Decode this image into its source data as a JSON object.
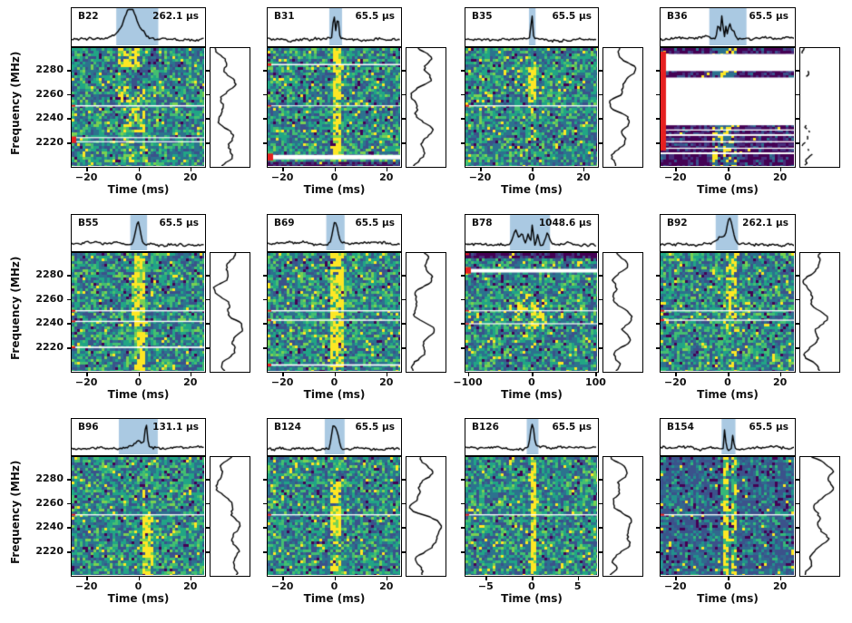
{
  "chart_data": {
    "type": "heatmap",
    "description": "3x4 grid of radio burst dynamic spectra; each panel has a pulse profile (top), a time-frequency waterfall (viridis colormap, white masked channels, red flag markers) and a frequency spectrum (right).",
    "xlabel": "Time (ms)",
    "ylabel": "Frequency (MHz)",
    "freq_ticks_mhz": [
      2280,
      2260,
      2240,
      2220
    ],
    "freq_range_mhz": [
      2199,
      2299
    ],
    "colormap": "viridis",
    "colors": {
      "shade": "#aac9e2",
      "masked_line": "#ffffff",
      "flag_marker": "#e62020",
      "line": "#000000",
      "border": "#000000"
    },
    "burst_fields": [
      "t_ms",
      "width_ms",
      "f_lo_mhz",
      "f_hi_mhz",
      "strength"
    ],
    "peak_fields": [
      "t_ms",
      "amplitude",
      "fwhm_ms"
    ],
    "panels": [
      {
        "id": "B22",
        "resolution": "262.1 µs",
        "x_ticks": [
          -20,
          0,
          20
        ],
        "xlim_ms": [
          -26,
          26
        ],
        "masked_lines_mhz": [
          {
            "f": 2250,
            "th": 1.5
          },
          {
            "f": 2223,
            "th": 1.2
          },
          {
            "f": 2219.5,
            "th": 1.2
          }
        ],
        "red_marks": [
          {
            "f": 2250,
            "h": 2
          },
          {
            "f_range": [
              2218.5,
              2224
            ],
            "w": 5
          }
        ],
        "bursts": [
          [
            -4,
            9,
            2283,
            2299,
            0.7
          ],
          [
            -3,
            10,
            2253,
            2267,
            0.4
          ],
          [
            -2,
            9,
            2228,
            2250,
            0.3
          ],
          [
            -1,
            8,
            2204,
            2222,
            0.25
          ]
        ],
        "profile": {
          "peaks": [
            [
              -5,
              0.5,
              6
            ],
            [
              -3,
              0.8,
              3.5
            ],
            [
              0,
              0.4,
              5
            ]
          ],
          "shade_ms": [
            -8.5,
            8
          ]
        },
        "spectrum": {
          "style": "wiggle"
        }
      },
      {
        "id": "B31",
        "resolution": "65.5 µs",
        "x_ticks": [
          -20,
          0,
          20
        ],
        "xlim_ms": [
          -26,
          26
        ],
        "masked_lines_mhz": [
          {
            "f": 2285,
            "th": 1.5
          },
          {
            "f": 2250,
            "th": 1.0
          },
          {
            "f": 2206.5,
            "th": 5
          }
        ],
        "red_marks": [
          {
            "f": 2285,
            "h": 3
          },
          {
            "f": 2250,
            "h": 1.5
          },
          {
            "f_range": [
              2203.5,
              2209.5
            ],
            "w": 6
          }
        ],
        "purple_strips_mhz": [
          [
            2199,
            2202.5
          ]
        ],
        "bursts": [
          [
            0.7,
            3.2,
            2199,
            2299,
            0.85
          ]
        ],
        "profile": {
          "peaks": [
            [
              0,
              1.0,
              0.9
            ],
            [
              1.5,
              0.85,
              0.9
            ]
          ],
          "shade_ms": [
            -1.8,
            3.2
          ]
        },
        "spectrum": {
          "style": "wiggle"
        }
      },
      {
        "id": "B35",
        "resolution": "65.5 µs",
        "x_ticks": [
          -20,
          0,
          20
        ],
        "xlim_ms": [
          -26,
          26
        ],
        "masked_lines_mhz": [
          {
            "f": 2250,
            "th": 1.3
          }
        ],
        "red_marks": [
          {
            "f": 2250,
            "h": 2
          }
        ],
        "bursts": [
          [
            0,
            2.6,
            2253,
            2284,
            0.75
          ],
          [
            0,
            2,
            2222,
            2253,
            0.25
          ]
        ],
        "profile": {
          "peaks": [
            [
              0.2,
              1.0,
              0.8
            ]
          ],
          "shade_ms": [
            -0.9,
            1.7
          ]
        },
        "spectrum": {
          "style": "wiggle",
          "bump": [
            0.1,
            0.45
          ]
        }
      },
      {
        "id": "B36",
        "resolution": "65.5 µs",
        "x_ticks": [
          -20,
          0,
          20
        ],
        "xlim_ms": [
          -26,
          26
        ],
        "masked_lines_mhz": [],
        "red_marks": [
          {
            "f_range": [
              2212,
              2296
            ],
            "w": 6
          }
        ],
        "purple_strips_mhz": [
          [
            2294,
            2299
          ],
          [
            2274,
            2279.5
          ],
          [
            2230,
            2233.5
          ],
          [
            2226,
            2229
          ],
          [
            2220,
            2224.5
          ],
          [
            2214.5,
            2219
          ],
          [
            2210.5,
            2213.5
          ],
          [
            2199,
            2209
          ]
        ],
        "mask_rest_white": true,
        "bursts": [
          [
            -3,
            7,
            2199,
            2299,
            0.75
          ],
          [
            1,
            4,
            2199,
            2299,
            0.65
          ]
        ],
        "profile": {
          "peaks": [
            [
              -3.5,
              0.6,
              1.2
            ],
            [
              -2,
              1.0,
              0.8
            ],
            [
              -0.5,
              0.5,
              0.6
            ],
            [
              1,
              0.55,
              1.5
            ],
            [
              2.5,
              0.3,
              1.2
            ]
          ],
          "shade_ms": [
            -7,
            7.5
          ]
        },
        "spectrum": {
          "style": "sparse"
        }
      },
      {
        "id": "B55",
        "resolution": "65.5 µs",
        "x_ticks": [
          -20,
          0,
          20
        ],
        "xlim_ms": [
          -26,
          26
        ],
        "masked_lines_mhz": [
          {
            "f": 2250,
            "th": 1.4
          },
          {
            "f": 2241,
            "th": 1.4
          },
          {
            "f": 2219,
            "th": 1.7
          }
        ],
        "red_marks": [
          {
            "f": 2250,
            "h": 2
          },
          {
            "f": 2241,
            "h": 2
          },
          {
            "f": 2219,
            "h": 2
          }
        ],
        "bursts": [
          [
            0,
            4.5,
            2199,
            2299,
            0.8
          ],
          [
            0,
            5.5,
            2240,
            2285,
            0.45
          ]
        ],
        "profile": {
          "peaks": [
            [
              0,
              1.0,
              2.2
            ]
          ],
          "shade_ms": [
            -3,
            3.6
          ]
        },
        "spectrum": {
          "style": "wiggle",
          "bump": [
            0.55,
            1
          ]
        }
      },
      {
        "id": "B69",
        "resolution": "65.5 µs",
        "x_ticks": [
          -20,
          0,
          20
        ],
        "xlim_ms": [
          -26,
          26
        ],
        "masked_lines_mhz": [
          {
            "f": 2250,
            "th": 1.4
          },
          {
            "f": 2242,
            "th": 1.4
          },
          {
            "f": 2204,
            "th": 1.7
          }
        ],
        "red_marks": [
          {
            "f": 2250,
            "h": 2
          },
          {
            "f": 2242,
            "h": 2
          },
          {
            "f": 2204,
            "h": 3
          }
        ],
        "bursts": [
          [
            0.6,
            4.5,
            2199,
            2299,
            0.75
          ],
          [
            0.6,
            5,
            2230,
            2280,
            0.45
          ]
        ],
        "profile": {
          "peaks": [
            [
              0.5,
              1.0,
              2.4
            ]
          ],
          "shade_ms": [
            -3,
            4.2
          ]
        },
        "spectrum": {
          "style": "wiggle"
        }
      },
      {
        "id": "B78",
        "resolution": "1048.6 µs",
        "x_ticks": [
          -100,
          0,
          100
        ],
        "xlim_ms": [
          -105,
          105
        ],
        "masked_lines_mhz": [
          {
            "f": 2284,
            "th": 4
          },
          {
            "f": 2250,
            "th": 1.2
          },
          {
            "f": 2239,
            "th": 1.2
          }
        ],
        "red_marks": [
          {
            "f": 2298,
            "h": 2
          },
          {
            "f_range": [
              2281.5,
              2287
            ],
            "w": 6
          },
          {
            "f": 2250,
            "h": 1.5
          },
          {
            "f": 2239,
            "h": 1.5
          }
        ],
        "purple_strips_mhz": [
          [
            2294.5,
            2299
          ]
        ],
        "bursts": [
          [
            -22,
            14,
            2242,
            2258,
            0.75
          ],
          [
            4,
            11,
            2238,
            2258,
            0.7
          ],
          [
            13,
            9,
            2244,
            2256,
            0.65
          ],
          [
            -5,
            52,
            2224,
            2266,
            0.15
          ]
        ],
        "profile": {
          "peaks": [
            [
              -25,
              0.6,
              9
            ],
            [
              -15,
              0.45,
              6
            ],
            [
              -5,
              0.5,
              5
            ],
            [
              2,
              1.0,
              3
            ],
            [
              10,
              0.5,
              4
            ],
            [
              26,
              0.45,
              7
            ]
          ],
          "shade_ms": [
            -34,
            30
          ]
        },
        "spectrum": {
          "style": "wiggle",
          "bump": [
            0.35,
            0.65
          ]
        }
      },
      {
        "id": "B92",
        "resolution": "262.1 µs",
        "x_ticks": [
          -20,
          0,
          20
        ],
        "xlim_ms": [
          -26,
          26
        ],
        "masked_lines_mhz": [
          {
            "f": 2250,
            "th": 1.3
          },
          {
            "f": 2242,
            "th": 1.3
          }
        ],
        "red_marks": [
          {
            "f": 2250,
            "h": 2
          },
          {
            "f": 2242,
            "h": 2
          }
        ],
        "bursts": [
          [
            1,
            5,
            2262,
            2299,
            0.5
          ],
          [
            1,
            4.5,
            2230,
            2262,
            0.28
          ],
          [
            1,
            4,
            2199,
            2230,
            0.18
          ]
        ],
        "profile": {
          "peaks": [
            [
              -2,
              0.3,
              4
            ],
            [
              0.8,
              0.95,
              2
            ],
            [
              2.2,
              0.4,
              2
            ]
          ],
          "shade_ms": [
            -4.5,
            4.2
          ]
        },
        "spectrum": {
          "style": "wiggle"
        }
      },
      {
        "id": "B96",
        "resolution": "131.1 µs",
        "x_ticks": [
          -20,
          0,
          20
        ],
        "xlim_ms": [
          -26,
          26
        ],
        "masked_lines_mhz": [
          {
            "f": 2250,
            "th": 1.3
          }
        ],
        "red_marks": [
          {
            "f": 2250,
            "h": 2
          }
        ],
        "bursts": [
          [
            3,
            4,
            2199,
            2252,
            0.7
          ],
          [
            3,
            3,
            2252,
            2272,
            0.22
          ]
        ],
        "profile": {
          "peaks": [
            [
              -2,
              0.2,
              5
            ],
            [
              0.5,
              0.25,
              3
            ],
            [
              3.2,
              1.0,
              1.1
            ]
          ],
          "shade_ms": [
            -7.5,
            7.8
          ]
        },
        "spectrum": {
          "style": "wiggle",
          "bump": [
            0.5,
            1
          ]
        }
      },
      {
        "id": "B124",
        "resolution": "65.5 µs",
        "x_ticks": [
          -20,
          0,
          20
        ],
        "xlim_ms": [
          -26,
          26
        ],
        "masked_lines_mhz": [
          {
            "f": 2250,
            "th": 1.3
          }
        ],
        "red_marks": [
          {
            "f": 2250,
            "h": 2
          }
        ],
        "bursts": [
          [
            0.3,
            5,
            2233,
            2258,
            0.95
          ],
          [
            0.3,
            4.5,
            2262,
            2279,
            0.65
          ],
          [
            0.3,
            3.5,
            2204,
            2216,
            0.55
          ]
        ],
        "profile": {
          "peaks": [
            [
              -0.3,
              1.0,
              1.6
            ],
            [
              1.2,
              0.8,
              1.8
            ]
          ],
          "shade_ms": [
            -3.6,
            4.2
          ]
        },
        "spectrum": {
          "style": "wiggle",
          "bump": [
            0.45,
            0.75
          ]
        }
      },
      {
        "id": "B126",
        "resolution": "65.5 µs",
        "x_ticks": [
          -5,
          0,
          5
        ],
        "xlim_ms": [
          -7.3,
          7.3
        ],
        "masked_lines_mhz": [
          {
            "f": 2250,
            "th": 1.3
          }
        ],
        "red_marks": [
          {
            "f": 2250,
            "h": 2
          }
        ],
        "bursts": [
          [
            0.1,
            0.8,
            2199,
            2299,
            0.85
          ]
        ],
        "profile": {
          "peaks": [
            [
              0.1,
              1.0,
              0.45
            ]
          ],
          "shade_ms": [
            -0.5,
            0.8
          ]
        },
        "spectrum": {
          "style": "wiggle",
          "bump": [
            0.35,
            0.7
          ]
        }
      },
      {
        "id": "B154",
        "resolution": "65.5 µs",
        "x_ticks": [
          -20,
          0,
          20
        ],
        "xlim_ms": [
          -26,
          26
        ],
        "palette": "dark",
        "masked_lines_mhz": [
          {
            "f": 2250,
            "th": 1.3
          }
        ],
        "red_marks": [
          {
            "f": 2250,
            "h": 2
          }
        ],
        "bursts": [
          [
            -0.8,
            2.6,
            2199,
            2299,
            0.9
          ],
          [
            2.2,
            2.2,
            2199,
            2299,
            0.7
          ]
        ],
        "profile": {
          "peaks": [
            [
              -0.9,
              1.12,
              0.55
            ],
            [
              2.2,
              0.6,
              0.7
            ]
          ],
          "shade_ms": [
            -2.2,
            3.2
          ]
        },
        "spectrum": {
          "style": "wiggle",
          "bump": [
            0.0,
            0.5
          ]
        }
      }
    ]
  }
}
